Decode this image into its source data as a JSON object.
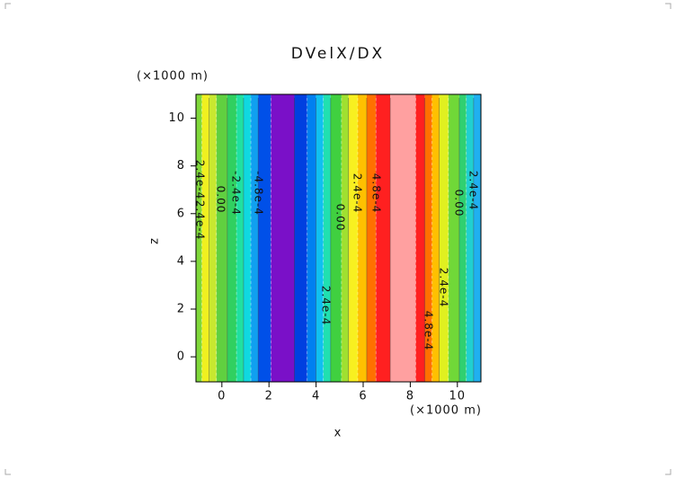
{
  "chart_data": {
    "type": "contourf",
    "title": "DVelX/DX",
    "x_label": "x",
    "y_label": "z",
    "x_unit": "(×1000 m)",
    "y_unit": "(×1000 m)",
    "xlim": [
      -1.1,
      11.0
    ],
    "ylim": [
      -1.05,
      11.0
    ],
    "xticks": [
      0,
      2,
      4,
      6,
      8,
      10
    ],
    "yticks": [
      0,
      2,
      4,
      6,
      8,
      10
    ],
    "bands": {
      "edges": [
        -1.1,
        -0.85,
        -0.54,
        -0.23,
        0.23,
        0.62,
        0.92,
        1.23,
        1.54,
        2.08,
        3.08,
        3.62,
        4.0,
        4.31,
        4.62,
        5.08,
        5.38,
        5.77,
        6.15,
        6.54,
        7.15,
        8.23,
        8.62,
        8.92,
        9.23,
        9.62,
        10.08,
        10.38,
        10.69,
        11.0
      ],
      "colors": [
        "#7fd83a",
        "#f0f020",
        "#c8e830",
        "#60d040",
        "#30d060",
        "#20e0a0",
        "#10d8e0",
        "#10a0f0",
        "#0050e8",
        "#7a10c8",
        "#0040e0",
        "#0080f0",
        "#10c0f0",
        "#20e0b0",
        "#40d040",
        "#a0e030",
        "#f8f020",
        "#ffc000",
        "#ff7000",
        "#ff2020",
        "#ffa0a0",
        "#ff2020",
        "#ff7000",
        "#ffc000",
        "#e0f020",
        "#70d838",
        "#30d070",
        "#20d0d0",
        "#20b0f0"
      ]
    },
    "contour_labels": [
      "2.4e-4",
      "2.4e-4",
      "0.00",
      "-2.4e-4",
      "-4.8e-4",
      "2.4e-4",
      "4.8e-4",
      "0.00",
      "2.4e-4",
      "2.4e-4",
      "4.8e-4",
      "2.4e-4",
      "0.00"
    ]
  }
}
